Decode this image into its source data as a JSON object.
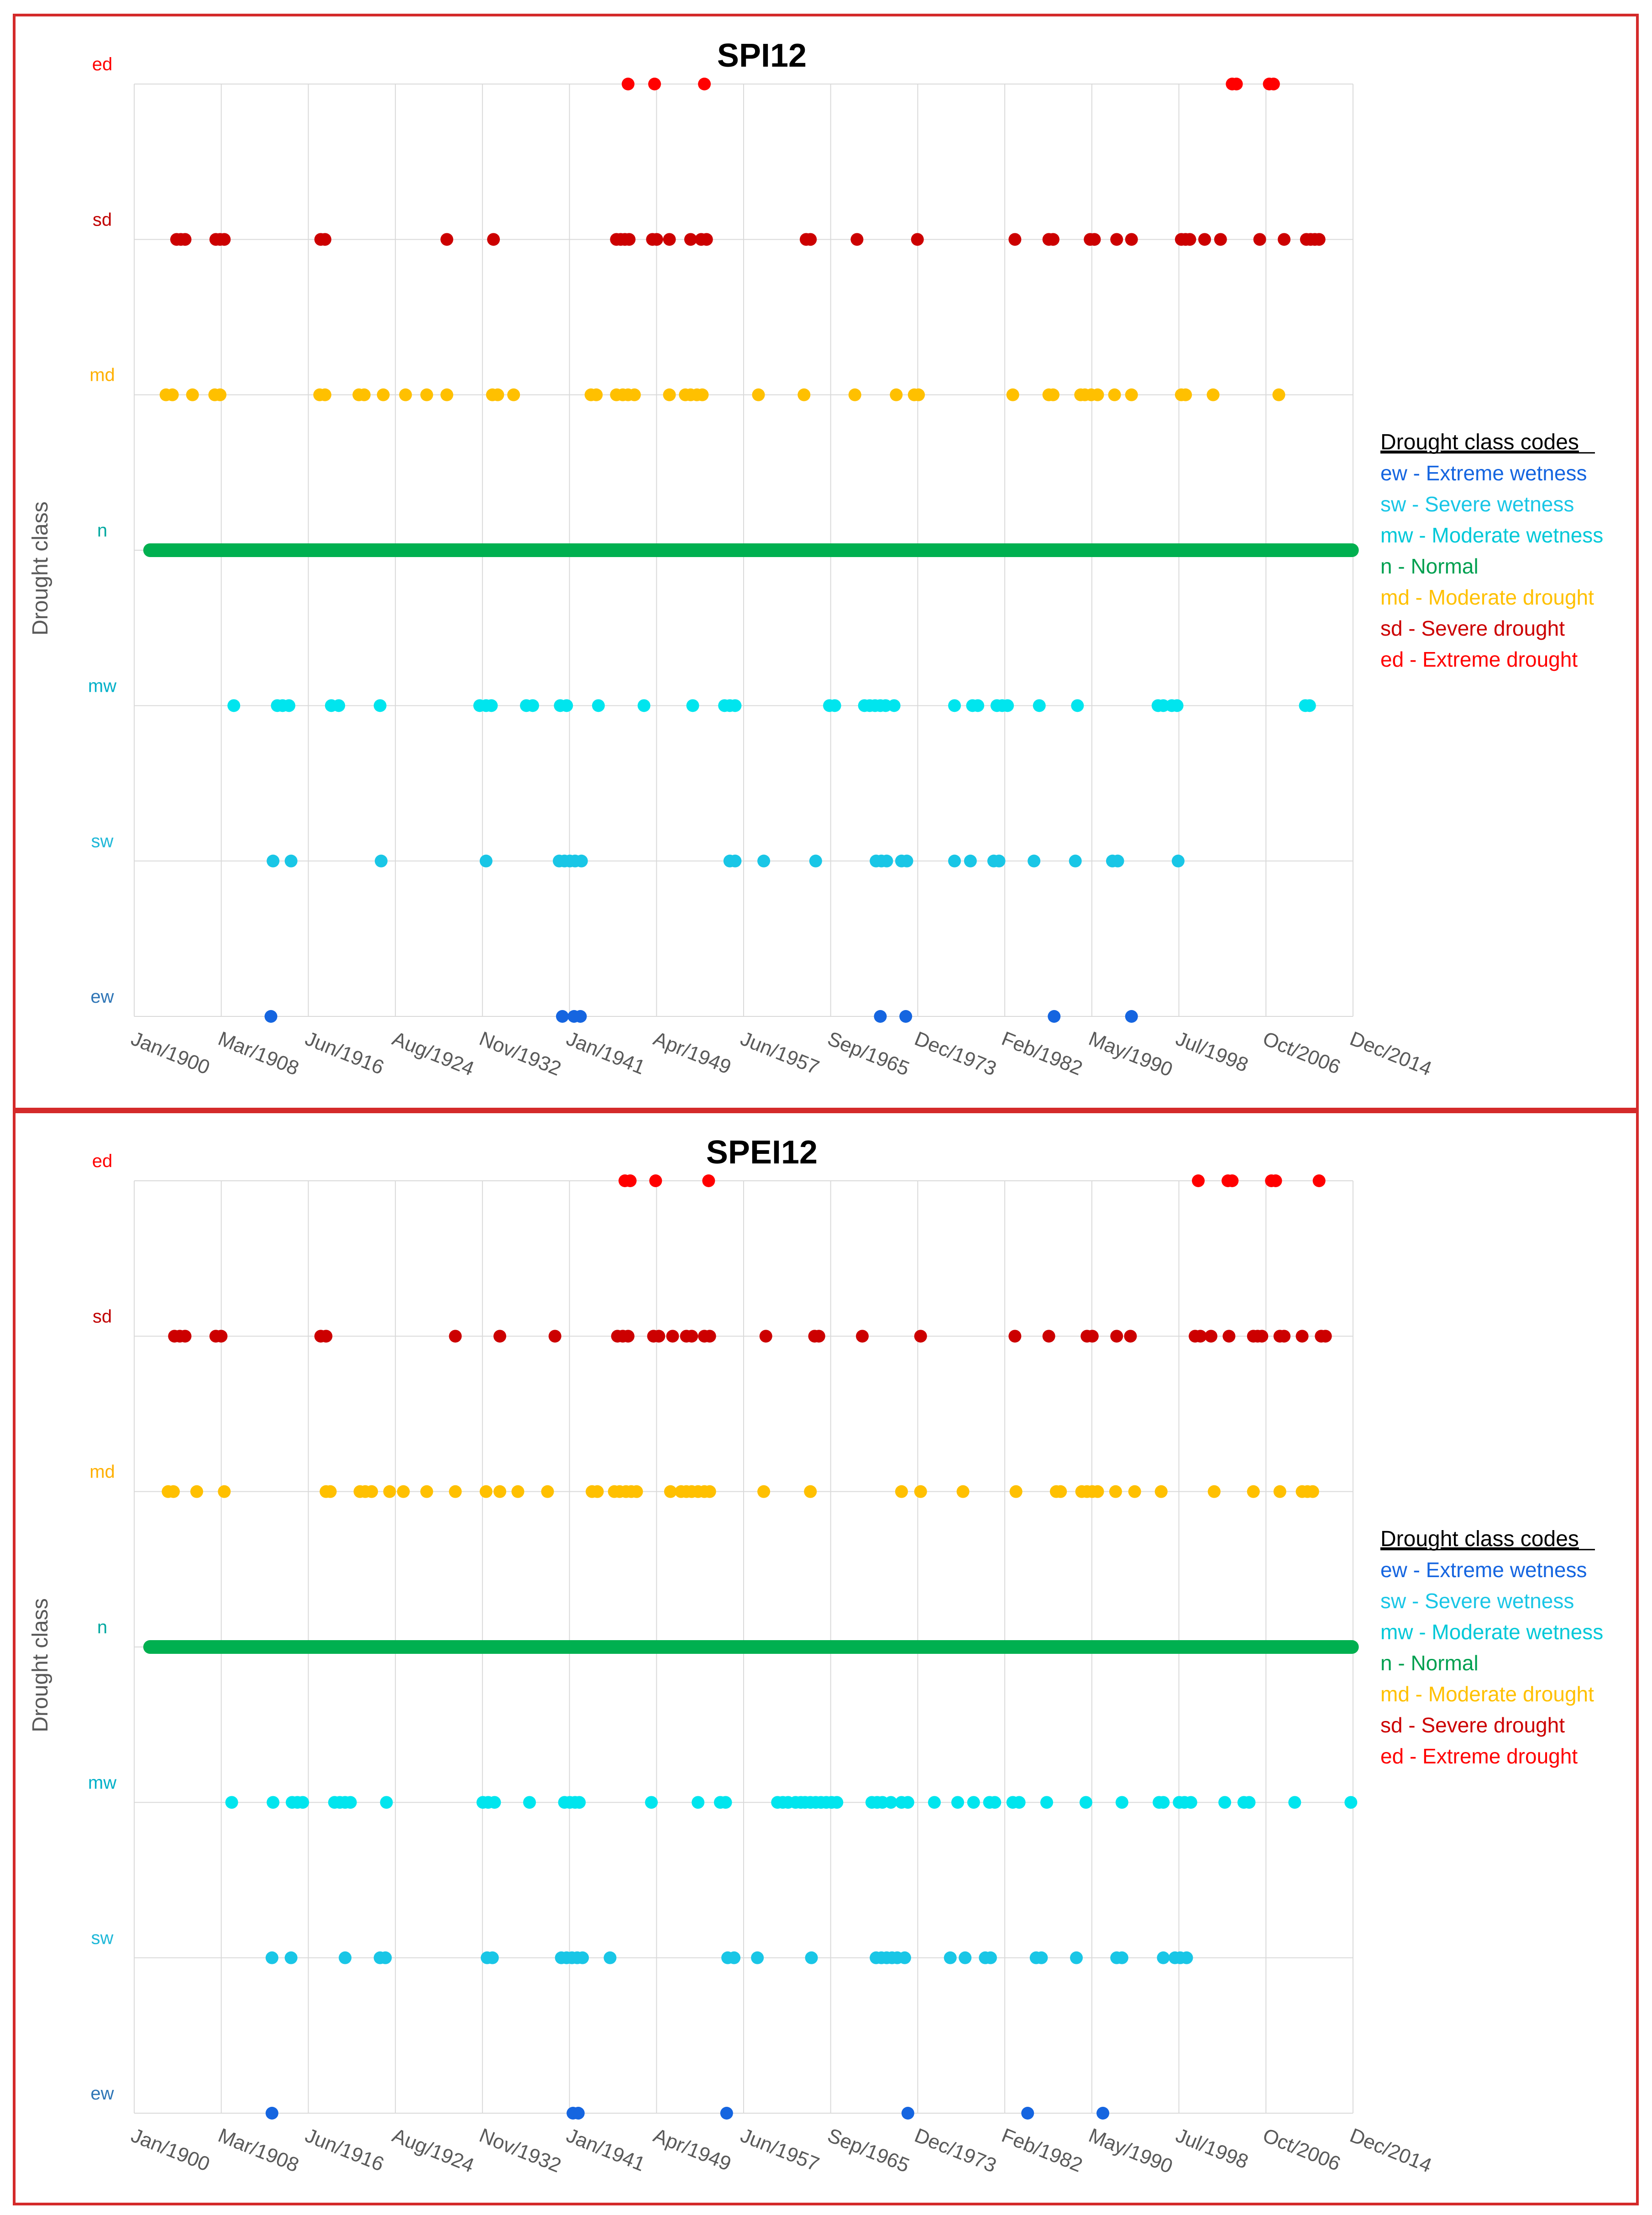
{
  "class_codes": [
    "ew",
    "sw",
    "mw",
    "n",
    "md",
    "sd",
    "ed"
  ],
  "class_colors": {
    "ew": "#1565e0",
    "sw": "#19c6e6",
    "mw": "#00e5ee",
    "n": "#00b050",
    "md": "#ffc000",
    "sd": "#cc0000",
    "ed": "#ff0000"
  },
  "tick_colors": {
    "ew": "#2e75b6",
    "sw": "#1fb8d8",
    "mw": "#00b0c8",
    "n": "#00a8a0",
    "md": "#ffb000",
    "sd": "#c00000",
    "ed": "#ff0000"
  },
  "legend": {
    "title": "Drought class codes",
    "items": [
      {
        "code": "ew",
        "text": "ew - Extreme wetness",
        "color": "#1565e0"
      },
      {
        "code": "sw",
        "text": "sw - Severe wetness",
        "color": "#19c6e6"
      },
      {
        "code": "mw",
        "text": "mw - Moderate wetness",
        "color": "#00c8d8"
      },
      {
        "code": "n",
        "text": "n - Normal",
        "color": "#00a050"
      },
      {
        "code": "md",
        "text": "md - Moderate drought",
        "color": "#ffc000"
      },
      {
        "code": "sd",
        "text": "sd - Severe drought",
        "color": "#cc0000"
      },
      {
        "code": "ed",
        "text": "ed - Extreme drought",
        "color": "#ff0000"
      }
    ]
  },
  "chart_data": [
    {
      "type": "scatter",
      "title": "SPI12",
      "ylabel": "Drought class",
      "xlabel": "",
      "categories_y": [
        "ew",
        "sw",
        "mw",
        "n",
        "md",
        "sd",
        "ed"
      ],
      "x_tick_labels": [
        "Jan/1900",
        "Mar/1908",
        "Jun/1916",
        "Aug/1924",
        "Nov/1932",
        "Jan/1941",
        "Apr/1949",
        "Jun/1957",
        "Sep/1965",
        "Dec/1973",
        "Feb/1982",
        "May/1990",
        "Jul/1998",
        "Oct/2006",
        "Dec/2014"
      ],
      "xlim": [
        1900.0,
        2015.0
      ],
      "normal_span": [
        1901.5,
        2014.9
      ],
      "series": [
        {
          "name": "ed",
          "x": [
            1946.6,
            1949.1,
            1953.8,
            2003.6,
            2004.0,
            2007.1,
            2007.5
          ]
        },
        {
          "name": "sd",
          "x": [
            1904.0,
            1904.4,
            1904.8,
            1907.7,
            1908.1,
            1908.5,
            1917.6,
            1918.0,
            1929.5,
            1933.9,
            1945.5,
            1945.9,
            1946.3,
            1946.7,
            1948.9,
            1949.3,
            1950.5,
            1952.5,
            1953.5,
            1954.0,
            1963.4,
            1963.8,
            1968.2,
            1973.9,
            1983.1,
            1986.3,
            1986.7,
            1990.2,
            1990.6,
            1992.7,
            1994.1,
            1998.8,
            1999.2,
            1999.6,
            2001.0,
            2002.5,
            2006.2,
            2008.5,
            2010.6,
            2011.0,
            2011.4,
            2011.8
          ]
        },
        {
          "name": "md",
          "x": [
            1903.0,
            1903.6,
            1905.5,
            1907.6,
            1908.1,
            1917.5,
            1918.0,
            1921.2,
            1921.7,
            1923.5,
            1925.6,
            1927.6,
            1929.5,
            1933.8,
            1934.3,
            1935.8,
            1943.1,
            1943.6,
            1945.5,
            1946.1,
            1946.6,
            1947.2,
            1950.5,
            1952.0,
            1952.5,
            1953.1,
            1953.6,
            1958.9,
            1963.2,
            1968.0,
            1971.9,
            1973.6,
            1974.0,
            1982.9,
            1986.3,
            1986.7,
            1989.3,
            1989.7,
            1990.3,
            1990.9,
            1992.5,
            1994.1,
            1998.8,
            1999.2,
            2001.8,
            2008.0
          ]
        },
        {
          "name": "mw",
          "x": [
            1909.4,
            1913.5,
            1914.0,
            1914.6,
            1918.6,
            1919.3,
            1923.2,
            1932.6,
            1933.2,
            1933.7,
            1937.0,
            1937.6,
            1940.2,
            1940.8,
            1943.8,
            1948.1,
            1952.7,
            1955.7,
            1956.2,
            1956.7,
            1965.6,
            1966.1,
            1968.9,
            1969.4,
            1969.9,
            1970.4,
            1970.9,
            1971.7,
            1977.4,
            1979.1,
            1979.6,
            1981.4,
            1981.9,
            1982.4,
            1985.4,
            1989.0,
            1996.6,
            1997.1,
            1997.9,
            1998.4,
            2010.5,
            2010.9
          ]
        },
        {
          "name": "sw",
          "x": [
            1913.1,
            1914.8,
            1923.3,
            1933.2,
            1940.1,
            1940.6,
            1941.1,
            1941.6,
            1942.2,
            1956.2,
            1956.7,
            1959.4,
            1964.3,
            1970.0,
            1970.5,
            1971.0,
            1972.4,
            1972.9,
            1977.4,
            1978.9,
            1981.1,
            1981.6,
            1984.9,
            1988.8,
            1992.3,
            1992.8,
            1998.5
          ]
        },
        {
          "name": "ew",
          "x": [
            1912.9,
            1940.4,
            1941.5,
            1942.1,
            1970.4,
            1972.8,
            1986.8,
            1994.1
          ]
        }
      ]
    },
    {
      "type": "scatter",
      "title": "SPEI12",
      "ylabel": "Drought class",
      "xlabel": "",
      "categories_y": [
        "ew",
        "sw",
        "mw",
        "n",
        "md",
        "sd",
        "ed"
      ],
      "x_tick_labels": [
        "Jan/1900",
        "Mar/1908",
        "Jun/1916",
        "Aug/1924",
        "Nov/1932",
        "Jan/1941",
        "Apr/1949",
        "Jun/1957",
        "Sep/1965",
        "Dec/1973",
        "Feb/1982",
        "May/1990",
        "Jul/1998",
        "Oct/2006",
        "Dec/2014"
      ],
      "xlim": [
        1900.0,
        2015.0
      ],
      "normal_span": [
        1901.5,
        2014.9
      ],
      "series": [
        {
          "name": "ed",
          "x": [
            1946.3,
            1946.8,
            1949.2,
            1954.2,
            2000.4,
            2003.2,
            2003.6,
            2007.3,
            2007.7,
            2011.8
          ]
        },
        {
          "name": "sd",
          "x": [
            1903.8,
            1904.3,
            1904.8,
            1907.7,
            1908.2,
            1917.6,
            1918.1,
            1930.3,
            1934.5,
            1939.7,
            1945.6,
            1946.1,
            1946.6,
            1949.0,
            1949.5,
            1950.8,
            1952.1,
            1952.6,
            1953.8,
            1954.3,
            1959.6,
            1964.2,
            1964.6,
            1968.7,
            1974.2,
            1983.1,
            1986.3,
            1989.9,
            1990.4,
            1992.7,
            1994.0,
            2000.1,
            2000.6,
            2001.6,
            2003.3,
            2005.6,
            2006.0,
            2006.4,
            2008.1,
            2008.5,
            2010.2,
            2012.0,
            2012.4
          ]
        },
        {
          "name": "md",
          "x": [
            1903.2,
            1903.7,
            1905.9,
            1908.5,
            1918.1,
            1918.5,
            1921.3,
            1921.8,
            1922.4,
            1924.1,
            1925.4,
            1927.6,
            1930.3,
            1933.2,
            1934.5,
            1936.2,
            1939.0,
            1943.2,
            1943.7,
            1945.3,
            1945.8,
            1946.4,
            1946.9,
            1947.4,
            1950.6,
            1951.6,
            1952.1,
            1952.6,
            1953.2,
            1953.8,
            1954.3,
            1959.4,
            1963.8,
            1972.4,
            1974.2,
            1978.2,
            1983.2,
            1987.0,
            1987.4,
            1989.4,
            1989.9,
            1990.4,
            1990.9,
            1992.6,
            1994.4,
            1996.9,
            2001.9,
            2005.6,
            2008.1,
            2010.2,
            2010.7,
            2011.2
          ]
        },
        {
          "name": "mw",
          "x": [
            1909.2,
            1913.1,
            1914.9,
            1915.4,
            1915.9,
            1918.9,
            1919.4,
            1919.9,
            1920.4,
            1923.8,
            1932.9,
            1933.4,
            1934.0,
            1937.3,
            1940.6,
            1941.1,
            1941.6,
            1942.0,
            1948.8,
            1953.2,
            1955.3,
            1955.8,
            1960.7,
            1961.2,
            1961.7,
            1962.4,
            1962.9,
            1963.3,
            1963.8,
            1964.3,
            1964.8,
            1965.3,
            1965.8,
            1966.3,
            1969.6,
            1970.1,
            1970.6,
            1971.4,
            1972.4,
            1973.0,
            1975.5,
            1977.7,
            1979.2,
            1980.7,
            1981.2,
            1982.9,
            1983.5,
            1986.1,
            1989.8,
            1993.2,
            1996.7,
            1997.1,
            1998.6,
            1999.1,
            1999.7,
            2002.9,
            2004.7,
            2005.2,
            2009.5,
            2014.8
          ]
        },
        {
          "name": "sw",
          "x": [
            1913.0,
            1914.8,
            1919.9,
            1923.2,
            1923.7,
            1933.3,
            1933.8,
            1940.3,
            1940.8,
            1941.3,
            1941.8,
            1942.3,
            1944.9,
            1956.0,
            1956.6,
            1958.8,
            1963.9,
            1970.0,
            1970.5,
            1971.0,
            1971.5,
            1972.0,
            1972.7,
            1977.0,
            1978.4,
            1980.3,
            1980.8,
            1985.1,
            1985.6,
            1988.9,
            1992.7,
            1993.2,
            1997.1,
            1998.2,
            1998.7,
            1999.3
          ]
        },
        {
          "name": "ew",
          "x": [
            1913.0,
            1941.4,
            1941.9,
            1955.9,
            1973.0,
            1984.3,
            1991.4
          ]
        }
      ]
    }
  ]
}
